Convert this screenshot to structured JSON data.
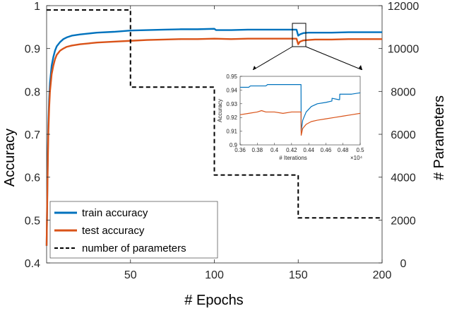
{
  "chart_data": [
    {
      "type": "line",
      "xlabel": "# Epochs",
      "ylabel": "Accuracy",
      "y2label": "# Parameters",
      "xlim": [
        0,
        200
      ],
      "ylim": [
        0.4,
        1
      ],
      "y2lim": [
        0,
        12000
      ],
      "xticks": [
        50,
        100,
        150,
        200
      ],
      "yticks": [
        0.4,
        0.5,
        0.6,
        0.7,
        0.8,
        0.9,
        1
      ],
      "y2ticks": [
        0,
        2000,
        4000,
        6000,
        8000,
        10000,
        12000
      ],
      "grid": false,
      "legend_position": "bottom-left",
      "series": [
        {
          "name": "train accuracy",
          "color": "#0072BD",
          "style": "solid",
          "axis": "left",
          "x": [
            0,
            0.5,
            1,
            1.5,
            2,
            3,
            4,
            5,
            6,
            8,
            10,
            12,
            15,
            20,
            25,
            30,
            40,
            50,
            60,
            70,
            80,
            90,
            100,
            101,
            110,
            120,
            130,
            140,
            149,
            150,
            151,
            153,
            156,
            160,
            170,
            180,
            190,
            200
          ],
          "y": [
            0.44,
            0.6,
            0.72,
            0.78,
            0.82,
            0.86,
            0.88,
            0.895,
            0.905,
            0.915,
            0.922,
            0.926,
            0.93,
            0.933,
            0.935,
            0.937,
            0.939,
            0.942,
            0.943,
            0.944,
            0.945,
            0.945,
            0.946,
            0.943,
            0.943,
            0.944,
            0.944,
            0.944,
            0.944,
            0.93,
            0.933,
            0.936,
            0.937,
            0.937,
            0.937,
            0.938,
            0.938,
            0.938
          ]
        },
        {
          "name": "test accuracy",
          "color": "#D95319",
          "style": "solid",
          "axis": "left",
          "x": [
            0,
            0.5,
            1,
            1.5,
            2,
            3,
            4,
            5,
            6,
            8,
            10,
            12,
            15,
            20,
            25,
            30,
            40,
            50,
            60,
            70,
            80,
            90,
            100,
            110,
            120,
            130,
            140,
            149,
            150,
            151,
            153,
            156,
            160,
            170,
            180,
            190,
            200
          ],
          "y": [
            0.44,
            0.58,
            0.7,
            0.76,
            0.8,
            0.84,
            0.86,
            0.875,
            0.885,
            0.895,
            0.9,
            0.904,
            0.907,
            0.91,
            0.912,
            0.914,
            0.916,
            0.918,
            0.92,
            0.921,
            0.922,
            0.922,
            0.923,
            0.922,
            0.923,
            0.923,
            0.923,
            0.923,
            0.91,
            0.916,
            0.919,
            0.92,
            0.921,
            0.921,
            0.922,
            0.922,
            0.922
          ]
        },
        {
          "name": "number of parameters",
          "color": "#000000",
          "style": "dashed",
          "axis": "right",
          "x": [
            0,
            50,
            50,
            100,
            100,
            150,
            150,
            200
          ],
          "y": [
            11800,
            11800,
            8200,
            8200,
            4100,
            4100,
            2100,
            2100
          ]
        }
      ]
    },
    {
      "type": "line",
      "xlabel": "# Iterations",
      "ylabel": "Accuracy",
      "x_exponent_label": "×10⁴",
      "xlim": [
        0.36,
        0.5
      ],
      "ylim": [
        0.9,
        0.95
      ],
      "xticks": [
        0.36,
        0.38,
        0.4,
        0.42,
        0.44,
        0.46,
        0.48,
        0.5
      ],
      "xtick_labels": [
        "0.36",
        "0.38",
        "0.4",
        "0.42",
        "0.44",
        "0.46",
        "0.48",
        "0.5"
      ],
      "yticks": [
        0.9,
        0.91,
        0.92,
        0.93,
        0.94,
        0.95
      ],
      "yticks_labels": [
        "0.9",
        "0.91",
        "0.92",
        "0.93",
        "0.94",
        "0.95"
      ],
      "series": [
        {
          "color": "#0072BD",
          "x": [
            0.36,
            0.37,
            0.372,
            0.38,
            0.39,
            0.392,
            0.4,
            0.41,
            0.42,
            0.43,
            0.431,
            0.4312,
            0.433,
            0.437,
            0.443,
            0.45,
            0.46,
            0.467,
            0.4672,
            0.475,
            0.476,
            0.4762,
            0.49,
            0.5
          ],
          "y": [
            0.942,
            0.942,
            0.943,
            0.943,
            0.943,
            0.944,
            0.944,
            0.944,
            0.944,
            0.944,
            0.944,
            0.91,
            0.918,
            0.924,
            0.928,
            0.93,
            0.931,
            0.932,
            0.934,
            0.933,
            0.933,
            0.937,
            0.937,
            0.938
          ]
        },
        {
          "color": "#D95319",
          "x": [
            0.36,
            0.37,
            0.38,
            0.385,
            0.39,
            0.4,
            0.41,
            0.42,
            0.43,
            0.431,
            0.4312,
            0.433,
            0.437,
            0.443,
            0.45,
            0.46,
            0.47,
            0.48,
            0.49,
            0.5
          ],
          "y": [
            0.922,
            0.923,
            0.924,
            0.925,
            0.924,
            0.924,
            0.923,
            0.924,
            0.924,
            0.924,
            0.907,
            0.912,
            0.915,
            0.917,
            0.918,
            0.919,
            0.92,
            0.921,
            0.922,
            0.923
          ]
        }
      ]
    }
  ]
}
